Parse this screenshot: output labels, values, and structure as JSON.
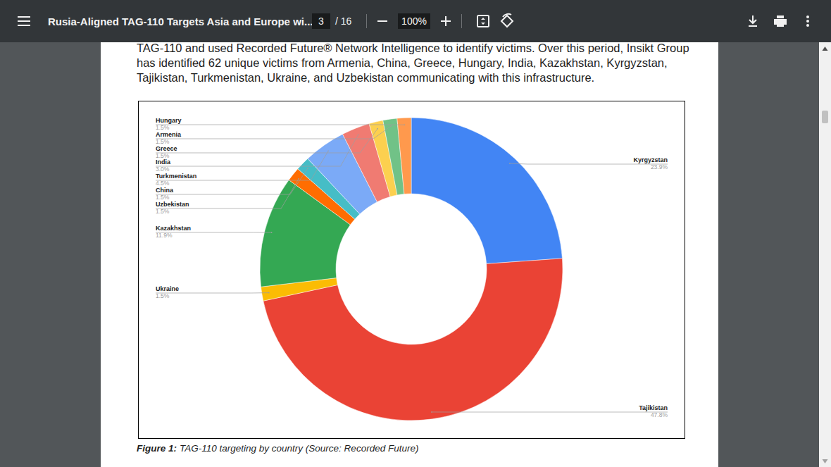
{
  "viewer": {
    "title": "Rusia-Aligned TAG-110 Targets Asia and Europe wi...",
    "page": "3",
    "page_total": "/ 16",
    "zoom": "100%"
  },
  "document": {
    "paragraph": [
      "TAG-110 and used Recorded Future® Network Intelligence to identify victims. Over this period, Insikt Group",
      "has identified 62 unique victims from Armenia, China, Greece, Hungary, India, Kazakhstan, Kyrgyzstan,",
      "Tajikistan, Turkmenistan, Ukraine, and Uzbekistan communicating with this infrastructure."
    ],
    "caption_label": "Figure 1:",
    "caption_text": "TAG-110 targeting by country (Source: Recorded Future)"
  },
  "chart_data": {
    "type": "donut",
    "categories": [
      "Kyrgyzstan",
      "Tajikistan",
      "Ukraine",
      "Kazakhstan",
      "Uzbekistan",
      "China",
      "Turkmenistan",
      "India",
      "Greece",
      "Armenia",
      "Hungary"
    ],
    "values": [
      23.9,
      47.8,
      1.5,
      11.9,
      1.5,
      1.5,
      4.5,
      3.0,
      1.5,
      1.5,
      1.5
    ],
    "value_labels": [
      "23.9%",
      "47.8%",
      "1.5%",
      "11.9%",
      "1.5%",
      "1.5%",
      "4.5%",
      "3.0%",
      "1.5%",
      "1.5%",
      "1.5%"
    ],
    "colors": [
      "#4285f4",
      "#ea4335",
      "#fbbc04",
      "#34a853",
      "#ff6d01",
      "#46bdc6",
      "#7baaf7",
      "#f07b72",
      "#fcd04f",
      "#71c287",
      "#ff994d"
    ],
    "data_labels": true
  }
}
